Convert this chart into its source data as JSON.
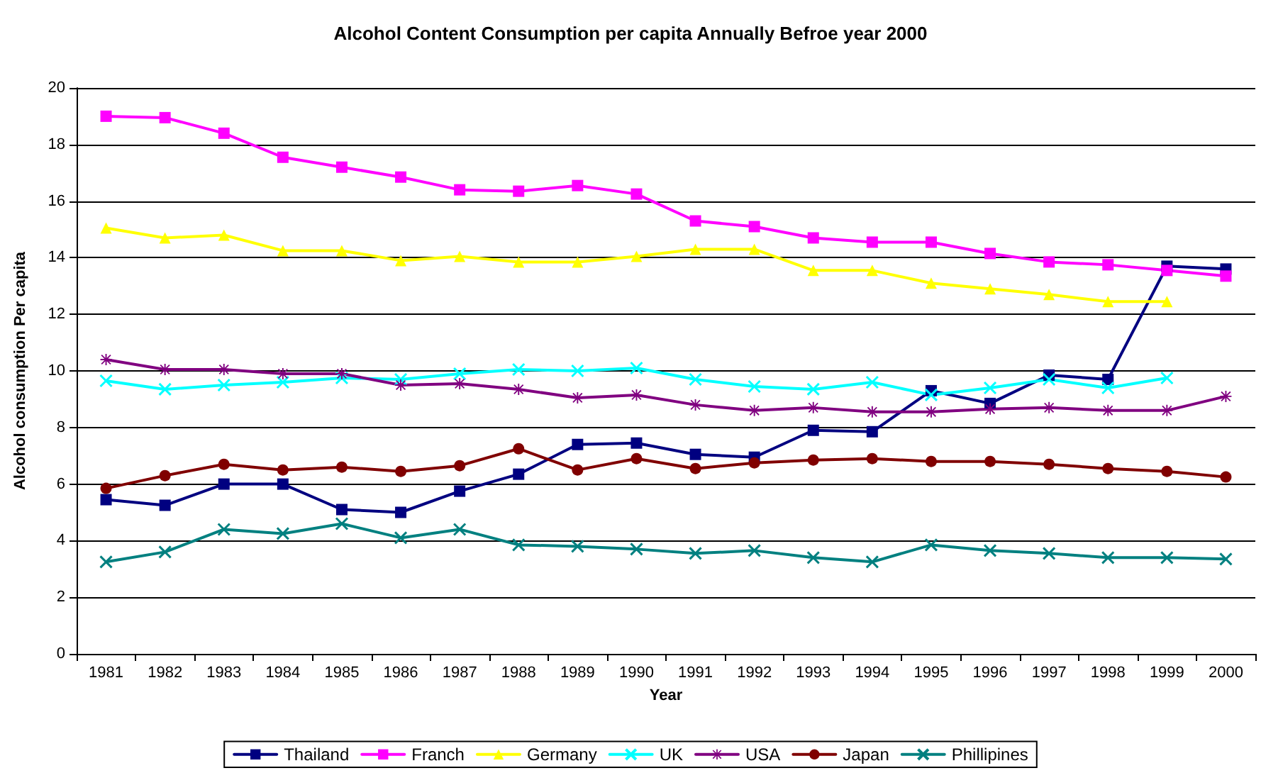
{
  "chart_data": {
    "type": "line",
    "title": "Alcohol Content Consumption per capita Annually Befroe year 2000",
    "xlabel": "Year",
    "ylabel": "Alcohol consumption Per capita",
    "categories": [
      "1981",
      "1982",
      "1983",
      "1984",
      "1985",
      "1986",
      "1987",
      "1988",
      "1989",
      "1990",
      "1991",
      "1992",
      "1993",
      "1994",
      "1995",
      "1996",
      "1997",
      "1998",
      "1999",
      "2000"
    ],
    "series": [
      {
        "name": "Thailand",
        "color": "#000080",
        "marker": "square",
        "values": [
          5.45,
          5.25,
          6.0,
          6.0,
          5.1,
          5.0,
          5.75,
          6.35,
          7.4,
          7.45,
          7.05,
          6.95,
          7.9,
          7.85,
          9.3,
          8.85,
          9.85,
          9.7,
          13.7,
          13.6
        ]
      },
      {
        "name": "Franch",
        "color": "#ff00ff",
        "marker": "square",
        "values": [
          19.0,
          18.95,
          18.4,
          17.55,
          17.2,
          16.85,
          16.4,
          16.35,
          16.55,
          16.25,
          15.3,
          15.1,
          14.7,
          14.55,
          14.55,
          14.15,
          13.85,
          13.75,
          13.55,
          13.35
        ]
      },
      {
        "name": "Germany",
        "color": "#ffff00",
        "marker": "triangle",
        "values": [
          15.05,
          14.7,
          14.8,
          14.25,
          14.25,
          13.9,
          14.05,
          13.85,
          13.85,
          14.05,
          14.3,
          14.3,
          13.55,
          13.55,
          13.1,
          12.9,
          12.7,
          12.45,
          12.45,
          null
        ]
      },
      {
        "name": "UK",
        "color": "#00ffff",
        "marker": "cross",
        "values": [
          9.65,
          9.35,
          9.5,
          9.6,
          9.75,
          9.7,
          9.9,
          10.05,
          10.0,
          10.1,
          9.7,
          9.45,
          9.35,
          9.6,
          9.15,
          9.4,
          9.7,
          9.4,
          9.75,
          null
        ]
      },
      {
        "name": "USA",
        "color": "#800080",
        "marker": "star",
        "values": [
          10.4,
          10.05,
          10.05,
          9.9,
          9.9,
          9.5,
          9.55,
          9.35,
          9.05,
          9.15,
          8.8,
          8.6,
          8.7,
          8.55,
          8.55,
          8.65,
          8.7,
          8.6,
          8.6,
          9.1
        ]
      },
      {
        "name": "Japan",
        "color": "#800000",
        "marker": "circle",
        "values": [
          5.85,
          6.3,
          6.7,
          6.5,
          6.6,
          6.45,
          6.65,
          7.25,
          6.5,
          6.9,
          6.55,
          6.75,
          6.85,
          6.9,
          6.8,
          6.8,
          6.7,
          6.55,
          6.45,
          6.25
        ]
      },
      {
        "name": "Phillipines",
        "color": "#008080",
        "marker": "cross",
        "values": [
          3.25,
          3.6,
          4.4,
          4.25,
          4.6,
          4.1,
          4.4,
          3.85,
          3.8,
          3.7,
          3.55,
          3.65,
          3.4,
          3.25,
          3.85,
          3.65,
          3.55,
          3.4,
          3.4,
          3.35
        ]
      }
    ],
    "ylim": [
      0,
      20
    ],
    "yticks": [
      0,
      2,
      4,
      6,
      8,
      10,
      12,
      14,
      16,
      18,
      20
    ],
    "grid": "y",
    "legend": "bottom"
  }
}
